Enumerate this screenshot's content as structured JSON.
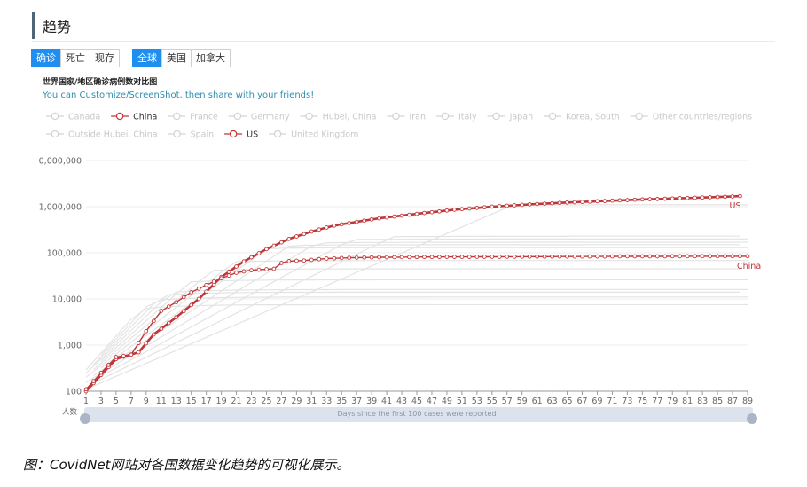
{
  "header": {
    "title": "趋势"
  },
  "metric_tabs": [
    {
      "label": "确诊",
      "active": true
    },
    {
      "label": "死亡",
      "active": false
    },
    {
      "label": "现存",
      "active": false
    }
  ],
  "region_tabs": [
    {
      "label": "全球",
      "active": true
    },
    {
      "label": "美国",
      "active": false
    },
    {
      "label": "加拿大",
      "active": false
    }
  ],
  "colors": {
    "accent": "#1e8ef0",
    "series_active": "#c0373a",
    "series_inactive": "#e3e3e3"
  },
  "caption": "图：CovidNet网站对各国数据变化趋势的可视化展示。",
  "chart_data": {
    "type": "line",
    "title": "世界国家/地区确诊病例数对比图",
    "subtitle": "You can Customize/ScreenShot, then share with your friends!",
    "xlabel": "Days since the first 100 cases were reported",
    "ylabel": "人数",
    "yscale": "log",
    "ylim": [
      100,
      10000000
    ],
    "xlim": [
      1,
      89
    ],
    "y_tick_labels": [
      "100",
      "1,000",
      "10,000",
      "100,000",
      "1,000,000",
      "0,000,000"
    ],
    "x_tick_labels": [
      "1",
      "3",
      "5",
      "7",
      "9",
      "11",
      "13",
      "15",
      "17",
      "19",
      "21",
      "23",
      "25",
      "27",
      "29",
      "31",
      "33",
      "35",
      "37",
      "39",
      "41",
      "43",
      "45",
      "47",
      "49",
      "51",
      "53",
      "55",
      "57",
      "59",
      "61",
      "63",
      "65",
      "67",
      "69",
      "71",
      "73",
      "75",
      "77",
      "79",
      "81",
      "83",
      "85",
      "87",
      "89"
    ],
    "legend": [
      "Canada",
      "China",
      "France",
      "Germany",
      "Hubei, China",
      "Iran",
      "Italy",
      "Japan",
      "Korea, South",
      "Other countries/regions",
      "Outside Hubei, China",
      "Spain",
      "US",
      "United Kingdom"
    ],
    "active_series": [
      "China",
      "US"
    ],
    "series": [
      {
        "name": "US",
        "end_label": "US",
        "x": [
          1,
          5,
          8,
          10,
          13,
          16,
          19,
          22,
          25,
          28,
          31,
          34,
          37,
          40,
          45,
          50,
          55,
          60,
          65,
          70,
          75,
          80,
          85,
          88
        ],
        "y": [
          100,
          500,
          700,
          1700,
          4000,
          10000,
          30000,
          65000,
          120000,
          200000,
          290000,
          390000,
          470000,
          560000,
          700000,
          860000,
          1000000,
          1120000,
          1230000,
          1330000,
          1430000,
          1520000,
          1620000,
          1690000
        ]
      },
      {
        "name": "China",
        "end_label": "China",
        "x": [
          1,
          3,
          5,
          7,
          9,
          11,
          13,
          15,
          17,
          19,
          21,
          23,
          25,
          26,
          27,
          28,
          30,
          33,
          36,
          40,
          45,
          50,
          55,
          60,
          65,
          70,
          75,
          80,
          85,
          89
        ],
        "y": [
          110,
          250,
          550,
          620,
          2000,
          5500,
          8500,
          14000,
          20000,
          28000,
          37000,
          42000,
          44000,
          45000,
          60000,
          66000,
          68000,
          75000,
          78000,
          80000,
          81000,
          81500,
          82000,
          82500,
          83000,
          83500,
          83800,
          84000,
          84100,
          84200
        ]
      }
    ]
  }
}
